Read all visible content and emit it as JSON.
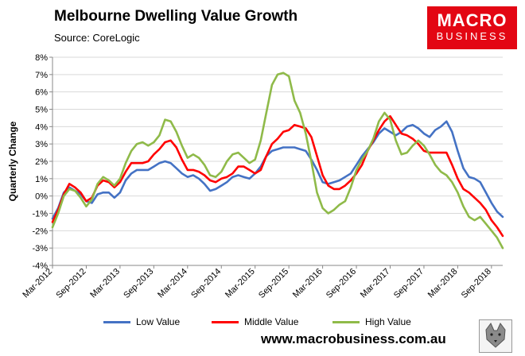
{
  "header": {
    "title": "Melbourne Dwelling Value Growth",
    "source": "Source: CoreLogic"
  },
  "logo": {
    "line1": "MACRO",
    "line2": "BUSINESS"
  },
  "footer": {
    "url": "www.macrobusiness.com.au"
  },
  "chart_data": {
    "type": "line",
    "title": "Melbourne Dwelling Value Growth",
    "xlabel": "",
    "ylabel": "Quarterly Change",
    "ylim": [
      -4,
      8
    ],
    "y_ticks": [
      -4,
      -3,
      -2,
      -1,
      0,
      1,
      2,
      3,
      4,
      5,
      6,
      7,
      8
    ],
    "y_tick_labels": [
      "-4%",
      "-3%",
      "-2%",
      "-1%",
      "0%",
      "1%",
      "2%",
      "3%",
      "4%",
      "5%",
      "6%",
      "7%",
      "8%"
    ],
    "x_range": [
      0,
      80
    ],
    "x_ticks": [
      0,
      6,
      12,
      18,
      24,
      30,
      36,
      42,
      48,
      54,
      60,
      66,
      72,
      78
    ],
    "x_tick_labels": [
      "Mar-2012",
      "Sep-2012",
      "Mar-2013",
      "Sep-2013",
      "Mar-2014",
      "Sep-2014",
      "Mar-2015",
      "Sep-2015",
      "Mar-2016",
      "Sep-2016",
      "Mar-2017",
      "Sep-2017",
      "Mar-2018",
      "Sep-2018"
    ],
    "x_unit": "months since Mar-2012",
    "gridlines": "horizontal",
    "legend_position": "bottom",
    "series": [
      {
        "name": "Low Value",
        "color": "#4472c4",
        "x": [
          0,
          1,
          2,
          3,
          4,
          5,
          6,
          7,
          8,
          9,
          10,
          11,
          12,
          13,
          14,
          15,
          16,
          17,
          18,
          19,
          20,
          21,
          22,
          23,
          24,
          25,
          26,
          27,
          28,
          29,
          30,
          31,
          32,
          33,
          34,
          35,
          36,
          37,
          38,
          39,
          40,
          41,
          42,
          43,
          44,
          45,
          46,
          47,
          48,
          49,
          50,
          51,
          52,
          53,
          54,
          55,
          56,
          57,
          58,
          59,
          60,
          61,
          62,
          63,
          64,
          65,
          66,
          67,
          68,
          69,
          70,
          71,
          72,
          73,
          74,
          75,
          76,
          77,
          78,
          79,
          80
        ],
        "values": [
          -1.3,
          -0.7,
          0.2,
          0.5,
          0.3,
          0.1,
          -0.3,
          -0.4,
          0.1,
          0.2,
          0.2,
          -0.1,
          0.2,
          0.9,
          1.3,
          1.5,
          1.5,
          1.5,
          1.7,
          1.9,
          2.0,
          1.9,
          1.6,
          1.3,
          1.1,
          1.2,
          1.0,
          0.7,
          0.3,
          0.4,
          0.6,
          0.8,
          1.1,
          1.2,
          1.1,
          1.0,
          1.3,
          1.7,
          2.3,
          2.6,
          2.7,
          2.8,
          2.8,
          2.8,
          2.7,
          2.6,
          2.1,
          1.5,
          0.8,
          0.7,
          0.8,
          0.9,
          1.1,
          1.3,
          1.8,
          2.3,
          2.7,
          3.1,
          3.6,
          3.9,
          3.7,
          3.5,
          3.7,
          4.0,
          4.1,
          3.9,
          3.6,
          3.4,
          3.8,
          4.0,
          4.3,
          3.7,
          2.6,
          1.6,
          1.1,
          1.0,
          0.8,
          0.2,
          -0.4,
          -0.9,
          -1.2
        ]
      },
      {
        "name": "Middle Value",
        "color": "#ff0000",
        "x": [
          0,
          1,
          2,
          3,
          4,
          5,
          6,
          7,
          8,
          9,
          10,
          11,
          12,
          13,
          14,
          15,
          16,
          17,
          18,
          19,
          20,
          21,
          22,
          23,
          24,
          25,
          26,
          27,
          28,
          29,
          30,
          31,
          32,
          33,
          34,
          35,
          36,
          37,
          38,
          39,
          40,
          41,
          42,
          43,
          44,
          45,
          46,
          47,
          48,
          49,
          50,
          51,
          52,
          53,
          54,
          55,
          56,
          57,
          58,
          59,
          60,
          61,
          62,
          63,
          64,
          65,
          66,
          67,
          68,
          69,
          70,
          71,
          72,
          73,
          74,
          75,
          76,
          77,
          78,
          79,
          80
        ],
        "values": [
          -1.5,
          -0.8,
          0.1,
          0.7,
          0.5,
          0.2,
          -0.3,
          -0.1,
          0.6,
          0.9,
          0.8,
          0.5,
          0.8,
          1.4,
          1.9,
          1.9,
          1.9,
          2.0,
          2.4,
          2.7,
          3.1,
          3.2,
          2.8,
          2.1,
          1.5,
          1.5,
          1.4,
          1.2,
          0.9,
          0.8,
          1.0,
          1.1,
          1.3,
          1.7,
          1.7,
          1.5,
          1.3,
          1.5,
          2.3,
          3.0,
          3.3,
          3.7,
          3.8,
          4.1,
          4.0,
          3.9,
          3.4,
          2.3,
          1.2,
          0.6,
          0.4,
          0.4,
          0.6,
          0.9,
          1.3,
          1.8,
          2.6,
          3.2,
          3.8,
          4.3,
          4.6,
          4.1,
          3.6,
          3.5,
          3.3,
          3.0,
          2.6,
          2.5,
          2.5,
          2.5,
          2.5,
          1.8,
          1.0,
          0.4,
          0.2,
          -0.1,
          -0.4,
          -0.8,
          -1.4,
          -1.8,
          -2.3
        ]
      },
      {
        "name": "High Value",
        "color": "#8fba49",
        "x": [
          0,
          1,
          2,
          3,
          4,
          5,
          6,
          7,
          8,
          9,
          10,
          11,
          12,
          13,
          14,
          15,
          16,
          17,
          18,
          19,
          20,
          21,
          22,
          23,
          24,
          25,
          26,
          27,
          28,
          29,
          30,
          31,
          32,
          33,
          34,
          35,
          36,
          37,
          38,
          39,
          40,
          41,
          42,
          43,
          44,
          45,
          46,
          47,
          48,
          49,
          50,
          51,
          52,
          53,
          54,
          55,
          56,
          57,
          58,
          59,
          60,
          61,
          62,
          63,
          64,
          65,
          66,
          67,
          68,
          69,
          70,
          71,
          72,
          73,
          74,
          75,
          76,
          77,
          78,
          79,
          80
        ],
        "values": [
          -1.8,
          -1.0,
          0.0,
          0.4,
          0.3,
          -0.1,
          -0.6,
          -0.2,
          0.7,
          1.1,
          0.9,
          0.6,
          1.0,
          1.9,
          2.6,
          3.0,
          3.1,
          2.9,
          3.1,
          3.5,
          4.4,
          4.3,
          3.7,
          2.9,
          2.2,
          2.4,
          2.2,
          1.8,
          1.2,
          1.1,
          1.4,
          2.0,
          2.4,
          2.5,
          2.2,
          1.9,
          2.1,
          3.2,
          4.8,
          6.4,
          7.0,
          7.1,
          6.9,
          5.5,
          4.8,
          3.6,
          2.0,
          0.2,
          -0.7,
          -1.0,
          -0.8,
          -0.5,
          -0.3,
          0.5,
          1.5,
          2.1,
          2.6,
          3.3,
          4.3,
          4.8,
          4.4,
          3.2,
          2.4,
          2.5,
          2.9,
          3.2,
          2.9,
          2.4,
          1.8,
          1.4,
          1.2,
          0.8,
          0.2,
          -0.6,
          -1.2,
          -1.4,
          -1.2,
          -1.6,
          -2.0,
          -2.4,
          -3.0
        ]
      }
    ]
  }
}
